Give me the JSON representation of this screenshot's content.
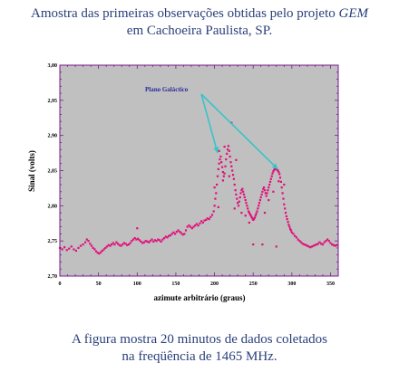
{
  "caption_top": {
    "line1_prefix": "Amostra das primeiras observações obtidas pelo projeto",
    "line1_em": "GEM",
    "line2": "em Cachoeira Paulista, SP."
  },
  "caption_bottom": {
    "line1": "A figura mostra 20 minutos de dados coletados",
    "line2": "na freqüência de 1465 MHz."
  },
  "colors": {
    "plot_bg": "#c0c0c0",
    "frame": "#7b1a8f",
    "points": "#e0107a",
    "arrow": "#35c4c9",
    "annotation_text": "#2a2a9a",
    "caption_text": "#2a3f7a"
  },
  "chart_data": {
    "type": "scatter",
    "xlabel": "azimute arbitrário (graus)",
    "ylabel": "Sinal (volts)",
    "xlim": [
      0,
      360
    ],
    "ylim": [
      2.7,
      3.0
    ],
    "xticks": [
      0,
      50,
      100,
      150,
      200,
      250,
      300,
      350
    ],
    "yticks": [
      2.7,
      2.75,
      2.8,
      2.85,
      2.9,
      2.95,
      3.0
    ],
    "ytick_labels": [
      "2,70",
      "2,75",
      "2,80",
      "2,85",
      "2,90",
      "2,95",
      "3,00"
    ],
    "grid": false,
    "annotation": {
      "text": "Plano Galáctico",
      "arrow_targets": [
        {
          "x": 204,
          "y": 2.875
        },
        {
          "x": 282,
          "y": 2.852
        }
      ]
    },
    "series": [
      {
        "points": [
          [
            0,
            2.74
          ],
          [
            3,
            2.738
          ],
          [
            6,
            2.741
          ],
          [
            9,
            2.737
          ],
          [
            12,
            2.739
          ],
          [
            15,
            2.742
          ],
          [
            18,
            2.738
          ],
          [
            21,
            2.736
          ],
          [
            24,
            2.74
          ],
          [
            27,
            2.743
          ],
          [
            30,
            2.745
          ],
          [
            33,
            2.748
          ],
          [
            35,
            2.752
          ],
          [
            37,
            2.75
          ],
          [
            39,
            2.746
          ],
          [
            41,
            2.743
          ],
          [
            43,
            2.74
          ],
          [
            45,
            2.738
          ],
          [
            47,
            2.735
          ],
          [
            49,
            2.733
          ],
          [
            51,
            2.732
          ],
          [
            53,
            2.734
          ],
          [
            55,
            2.736
          ],
          [
            57,
            2.738
          ],
          [
            59,
            2.74
          ],
          [
            61,
            2.742
          ],
          [
            63,
            2.744
          ],
          [
            65,
            2.743
          ],
          [
            67,
            2.745
          ],
          [
            69,
            2.747
          ],
          [
            71,
            2.745
          ],
          [
            73,
            2.748
          ],
          [
            75,
            2.746
          ],
          [
            77,
            2.744
          ],
          [
            79,
            2.743
          ],
          [
            81,
            2.745
          ],
          [
            83,
            2.747
          ],
          [
            85,
            2.746
          ],
          [
            87,
            2.744
          ],
          [
            89,
            2.745
          ],
          [
            91,
            2.747
          ],
          [
            93,
            2.75
          ],
          [
            95,
            2.752
          ],
          [
            97,
            2.754
          ],
          [
            99,
            2.752
          ],
          [
            100,
            2.768
          ],
          [
            101,
            2.753
          ],
          [
            103,
            2.751
          ],
          [
            105,
            2.749
          ],
          [
            107,
            2.747
          ],
          [
            109,
            2.748
          ],
          [
            111,
            2.75
          ],
          [
            113,
            2.749
          ],
          [
            115,
            2.748
          ],
          [
            117,
            2.75
          ],
          [
            119,
            2.752
          ],
          [
            121,
            2.749
          ],
          [
            123,
            2.751
          ],
          [
            125,
            2.75
          ],
          [
            127,
            2.752
          ],
          [
            129,
            2.751
          ],
          [
            131,
            2.749
          ],
          [
            133,
            2.752
          ],
          [
            135,
            2.754
          ],
          [
            137,
            2.756
          ],
          [
            139,
            2.755
          ],
          [
            141,
            2.757
          ],
          [
            143,
            2.758
          ],
          [
            145,
            2.76
          ],
          [
            147,
            2.762
          ],
          [
            149,
            2.76
          ],
          [
            151,
            2.763
          ],
          [
            153,
            2.765
          ],
          [
            155,
            2.763
          ],
          [
            157,
            2.761
          ],
          [
            159,
            2.759
          ],
          [
            161,
            2.76
          ],
          [
            163,
            2.765
          ],
          [
            165,
            2.77
          ],
          [
            167,
            2.772
          ],
          [
            169,
            2.77
          ],
          [
            171,
            2.768
          ],
          [
            173,
            2.77
          ],
          [
            175,
            2.772
          ],
          [
            177,
            2.774
          ],
          [
            179,
            2.772
          ],
          [
            181,
            2.775
          ],
          [
            183,
            2.778
          ],
          [
            185,
            2.776
          ],
          [
            187,
            2.779
          ],
          [
            189,
            2.78
          ],
          [
            191,
            2.782
          ],
          [
            193,
            2.781
          ],
          [
            195,
            2.784
          ],
          [
            197,
            2.787
          ],
          [
            199,
            2.792
          ],
          [
            200,
            2.8
          ],
          [
            201,
            2.81
          ],
          [
            202,
            2.818
          ],
          [
            203,
            2.83
          ],
          [
            204,
            2.842
          ],
          [
            205,
            2.852
          ],
          [
            206,
            2.86
          ],
          [
            207,
            2.866
          ],
          [
            208,
            2.87
          ],
          [
            209,
            2.862
          ],
          [
            210,
            2.855
          ],
          [
            211,
            2.848
          ],
          [
            212,
            2.842
          ],
          [
            213,
            2.846
          ],
          [
            214,
            2.856
          ],
          [
            215,
            2.866
          ],
          [
            216,
            2.874
          ],
          [
            217,
            2.88
          ],
          [
            218,
            2.885
          ],
          [
            219,
            2.878
          ],
          [
            220,
            2.87
          ],
          [
            221,
            2.862
          ],
          [
            222,
            2.856
          ],
          [
            223,
            2.85
          ],
          [
            224,
            2.844
          ],
          [
            225,
            2.838
          ],
          [
            226,
            2.83
          ],
          [
            227,
            2.822
          ],
          [
            228,
            2.816
          ],
          [
            229,
            2.81
          ],
          [
            230,
            2.804
          ],
          [
            231,
            2.8
          ],
          [
            232,
            2.806
          ],
          [
            233,
            2.812
          ],
          [
            234,
            2.818
          ],
          [
            235,
            2.822
          ],
          [
            236,
            2.824
          ],
          [
            237,
            2.82
          ],
          [
            238,
            2.816
          ],
          [
            239,
            2.812
          ],
          [
            240,
            2.808
          ],
          [
            241,
            2.804
          ],
          [
            242,
            2.8
          ],
          [
            243,
            2.796
          ],
          [
            244,
            2.792
          ],
          [
            245,
            2.79
          ],
          [
            246,
            2.788
          ],
          [
            247,
            2.786
          ],
          [
            248,
            2.784
          ],
          [
            249,
            2.782
          ],
          [
            250,
            2.78
          ],
          [
            251,
            2.781
          ],
          [
            252,
            2.783
          ],
          [
            253,
            2.786
          ],
          [
            254,
            2.789
          ],
          [
            255,
            2.792
          ],
          [
            256,
            2.796
          ],
          [
            257,
            2.8
          ],
          [
            258,
            2.804
          ],
          [
            259,
            2.808
          ],
          [
            260,
            2.812
          ],
          [
            261,
            2.816
          ],
          [
            262,
            2.82
          ],
          [
            263,
            2.824
          ],
          [
            264,
            2.826
          ],
          [
            265,
            2.822
          ],
          [
            266,
            2.818
          ],
          [
            267,
            2.814
          ],
          [
            268,
            2.818
          ],
          [
            269,
            2.822
          ],
          [
            270,
            2.826
          ],
          [
            271,
            2.83
          ],
          [
            272,
            2.834
          ],
          [
            273,
            2.838
          ],
          [
            274,
            2.842
          ],
          [
            275,
            2.846
          ],
          [
            276,
            2.849
          ],
          [
            277,
            2.851
          ],
          [
            278,
            2.852
          ],
          [
            279,
            2.853
          ],
          [
            280,
            2.852
          ],
          [
            281,
            2.851
          ],
          [
            282,
            2.85
          ],
          [
            283,
            2.848
          ],
          [
            284,
            2.845
          ],
          [
            285,
            2.84
          ],
          [
            286,
            2.834
          ],
          [
            287,
            2.826
          ],
          [
            288,
            2.818
          ],
          [
            289,
            2.81
          ],
          [
            290,
            2.802
          ],
          [
            291,
            2.796
          ],
          [
            292,
            2.79
          ],
          [
            293,
            2.785
          ],
          [
            294,
            2.781
          ],
          [
            295,
            2.777
          ],
          [
            296,
            2.773
          ],
          [
            297,
            2.77
          ],
          [
            298,
            2.767
          ],
          [
            299,
            2.765
          ],
          [
            300,
            2.762
          ],
          [
            302,
            2.76
          ],
          [
            304,
            2.757
          ],
          [
            306,
            2.755
          ],
          [
            308,
            2.752
          ],
          [
            310,
            2.75
          ],
          [
            312,
            2.748
          ],
          [
            314,
            2.746
          ],
          [
            316,
            2.745
          ],
          [
            318,
            2.744
          ],
          [
            320,
            2.743
          ],
          [
            322,
            2.742
          ],
          [
            324,
            2.741
          ],
          [
            326,
            2.742
          ],
          [
            328,
            2.743
          ],
          [
            330,
            2.744
          ],
          [
            332,
            2.745
          ],
          [
            334,
            2.746
          ],
          [
            336,
            2.748
          ],
          [
            338,
            2.746
          ],
          [
            340,
            2.745
          ],
          [
            342,
            2.748
          ],
          [
            344,
            2.75
          ],
          [
            346,
            2.752
          ],
          [
            348,
            2.75
          ],
          [
            350,
            2.747
          ],
          [
            352,
            2.745
          ],
          [
            354,
            2.744
          ],
          [
            356,
            2.743
          ],
          [
            358,
            2.744
          ],
          [
            222,
            2.918
          ],
          [
            228,
            2.865
          ],
          [
            206,
            2.878
          ],
          [
            213,
            2.884
          ],
          [
            200,
            2.826
          ],
          [
            211,
            2.836
          ],
          [
            219,
            2.842
          ],
          [
            226,
            2.796
          ],
          [
            235,
            2.79
          ],
          [
            240,
            2.786
          ],
          [
            245,
            2.776
          ],
          [
            265,
            2.79
          ],
          [
            270,
            2.808
          ],
          [
            276,
            2.82
          ],
          [
            290,
            2.83
          ],
          [
            283,
            2.835
          ],
          [
            250,
            2.745
          ],
          [
            262,
            2.745
          ],
          [
            280,
            2.742
          ],
          [
            205,
            2.798
          ]
        ]
      }
    ]
  }
}
